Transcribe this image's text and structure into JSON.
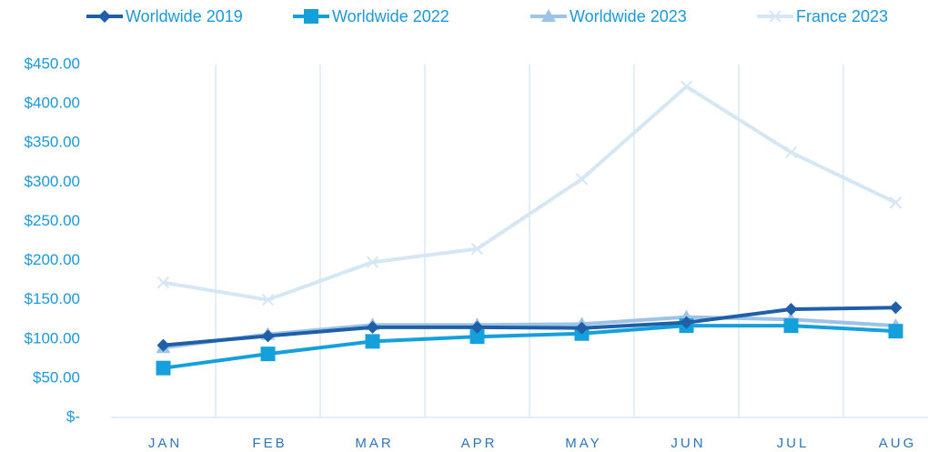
{
  "chart_data": {
    "type": "line",
    "categories": [
      "JAN",
      "FEB",
      "MAR",
      "APR",
      "MAY",
      "JUN",
      "JUL",
      "AUG"
    ],
    "series": [
      {
        "name": "Worldwide 2019",
        "color": "#1f5fa8",
        "marker": "diamond",
        "values": [
          92,
          104,
          115,
          115,
          114,
          121,
          138,
          140
        ]
      },
      {
        "name": "Worldwide 2022",
        "color": "#15a0dc",
        "marker": "square",
        "values": [
          63,
          81,
          97,
          103,
          107,
          117,
          117,
          110
        ]
      },
      {
        "name": "Worldwide 2023",
        "color": "#9dc3e6",
        "marker": "triangle",
        "values": [
          89,
          106,
          118,
          118,
          119,
          128,
          125,
          117
        ]
      },
      {
        "name": "France 2023",
        "color": "#d5e6f4",
        "marker": "x",
        "values": [
          172,
          150,
          198,
          215,
          304,
          422,
          338,
          274
        ]
      }
    ],
    "ylim": [
      0,
      450
    ],
    "yticks": [
      {
        "value": 0,
        "label": "$-"
      },
      {
        "value": 50,
        "label": "$50.00"
      },
      {
        "value": 100,
        "label": "$100.00"
      },
      {
        "value": 150,
        "label": "$150.00"
      },
      {
        "value": 200,
        "label": "$200.00"
      },
      {
        "value": 250,
        "label": "$250.00"
      },
      {
        "value": 300,
        "label": "$300.00"
      },
      {
        "value": 350,
        "label": "$350.00"
      },
      {
        "value": 400,
        "label": "$400.00"
      },
      {
        "value": 450,
        "label": "$450.00"
      }
    ],
    "grid": "vertical",
    "legend": "top"
  }
}
